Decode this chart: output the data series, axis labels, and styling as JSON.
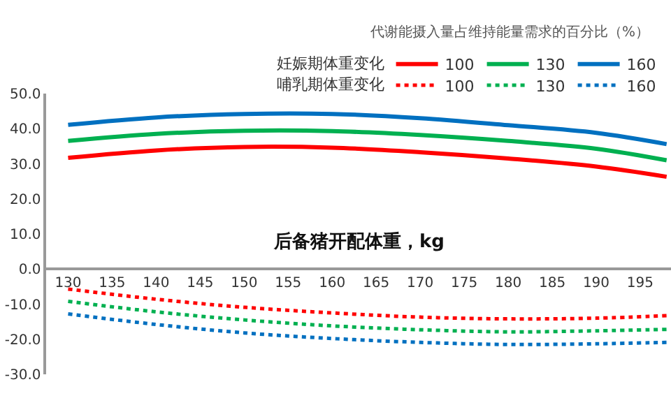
{
  "chart_data": {
    "type": "line",
    "xlabel": "后备猪开配体重，kg",
    "legend_title": "代谢能摄入量占维持能量需求的百分比（%）",
    "annotations": [
      "妊娠期体重变化",
      "哺乳期体重变化"
    ],
    "x": [
      130,
      140,
      150,
      160,
      170,
      180,
      190,
      198
    ],
    "series": [
      {
        "name": "100",
        "color": "#ff0000",
        "line_style": "dotted",
        "values": [
          -5.7,
          -8.6,
          -10.9,
          -12.5,
          -13.7,
          -14.2,
          -14.0,
          -13.3
        ]
      },
      {
        "name": "130",
        "color": "#00b050",
        "line_style": "dotted",
        "values": [
          -9.2,
          -12.2,
          -14.5,
          -16.2,
          -17.3,
          -17.9,
          -17.6,
          -17.2
        ]
      },
      {
        "name": "160",
        "color": "#0070c0",
        "line_style": "dotted",
        "values": [
          -12.8,
          -15.8,
          -18.2,
          -19.8,
          -20.9,
          -21.5,
          -21.3,
          -20.9
        ]
      },
      {
        "name": "100",
        "color": "#ff0000",
        "line_style": "solid",
        "values": [
          31.7,
          33.8,
          34.8,
          34.6,
          33.3,
          31.5,
          29.2,
          26.3
        ]
      },
      {
        "name": "130",
        "color": "#00b050",
        "line_style": "solid",
        "values": [
          36.5,
          38.5,
          39.4,
          39.3,
          38.2,
          36.5,
          34.3,
          31.0
        ]
      },
      {
        "name": "160",
        "color": "#0070c0",
        "line_style": "solid",
        "values": [
          41.1,
          43.2,
          44.2,
          44.2,
          43.0,
          41.0,
          38.8,
          35.6
        ]
      }
    ],
    "xlim": [
      127.5,
      198.5
    ],
    "xticks": [
      130,
      135,
      140,
      145,
      150,
      155,
      160,
      165,
      170,
      175,
      180,
      185,
      190,
      195
    ],
    "ylim": [
      -30,
      50
    ],
    "yticks": [
      {
        "value": -30,
        "label": "-30.0"
      },
      {
        "value": -20,
        "label": "-20.0"
      },
      {
        "value": -10,
        "label": "-10.0"
      },
      {
        "value": 0,
        "label": "0.0"
      },
      {
        "value": 10,
        "label": "10.0"
      },
      {
        "value": 20,
        "label": "20.0"
      },
      {
        "value": 30,
        "label": "30.0"
      },
      {
        "value": 40,
        "label": "40.0"
      },
      {
        "value": 50,
        "label": "50.0"
      }
    ],
    "grid": false,
    "legend": "top right",
    "marker": "none"
  }
}
